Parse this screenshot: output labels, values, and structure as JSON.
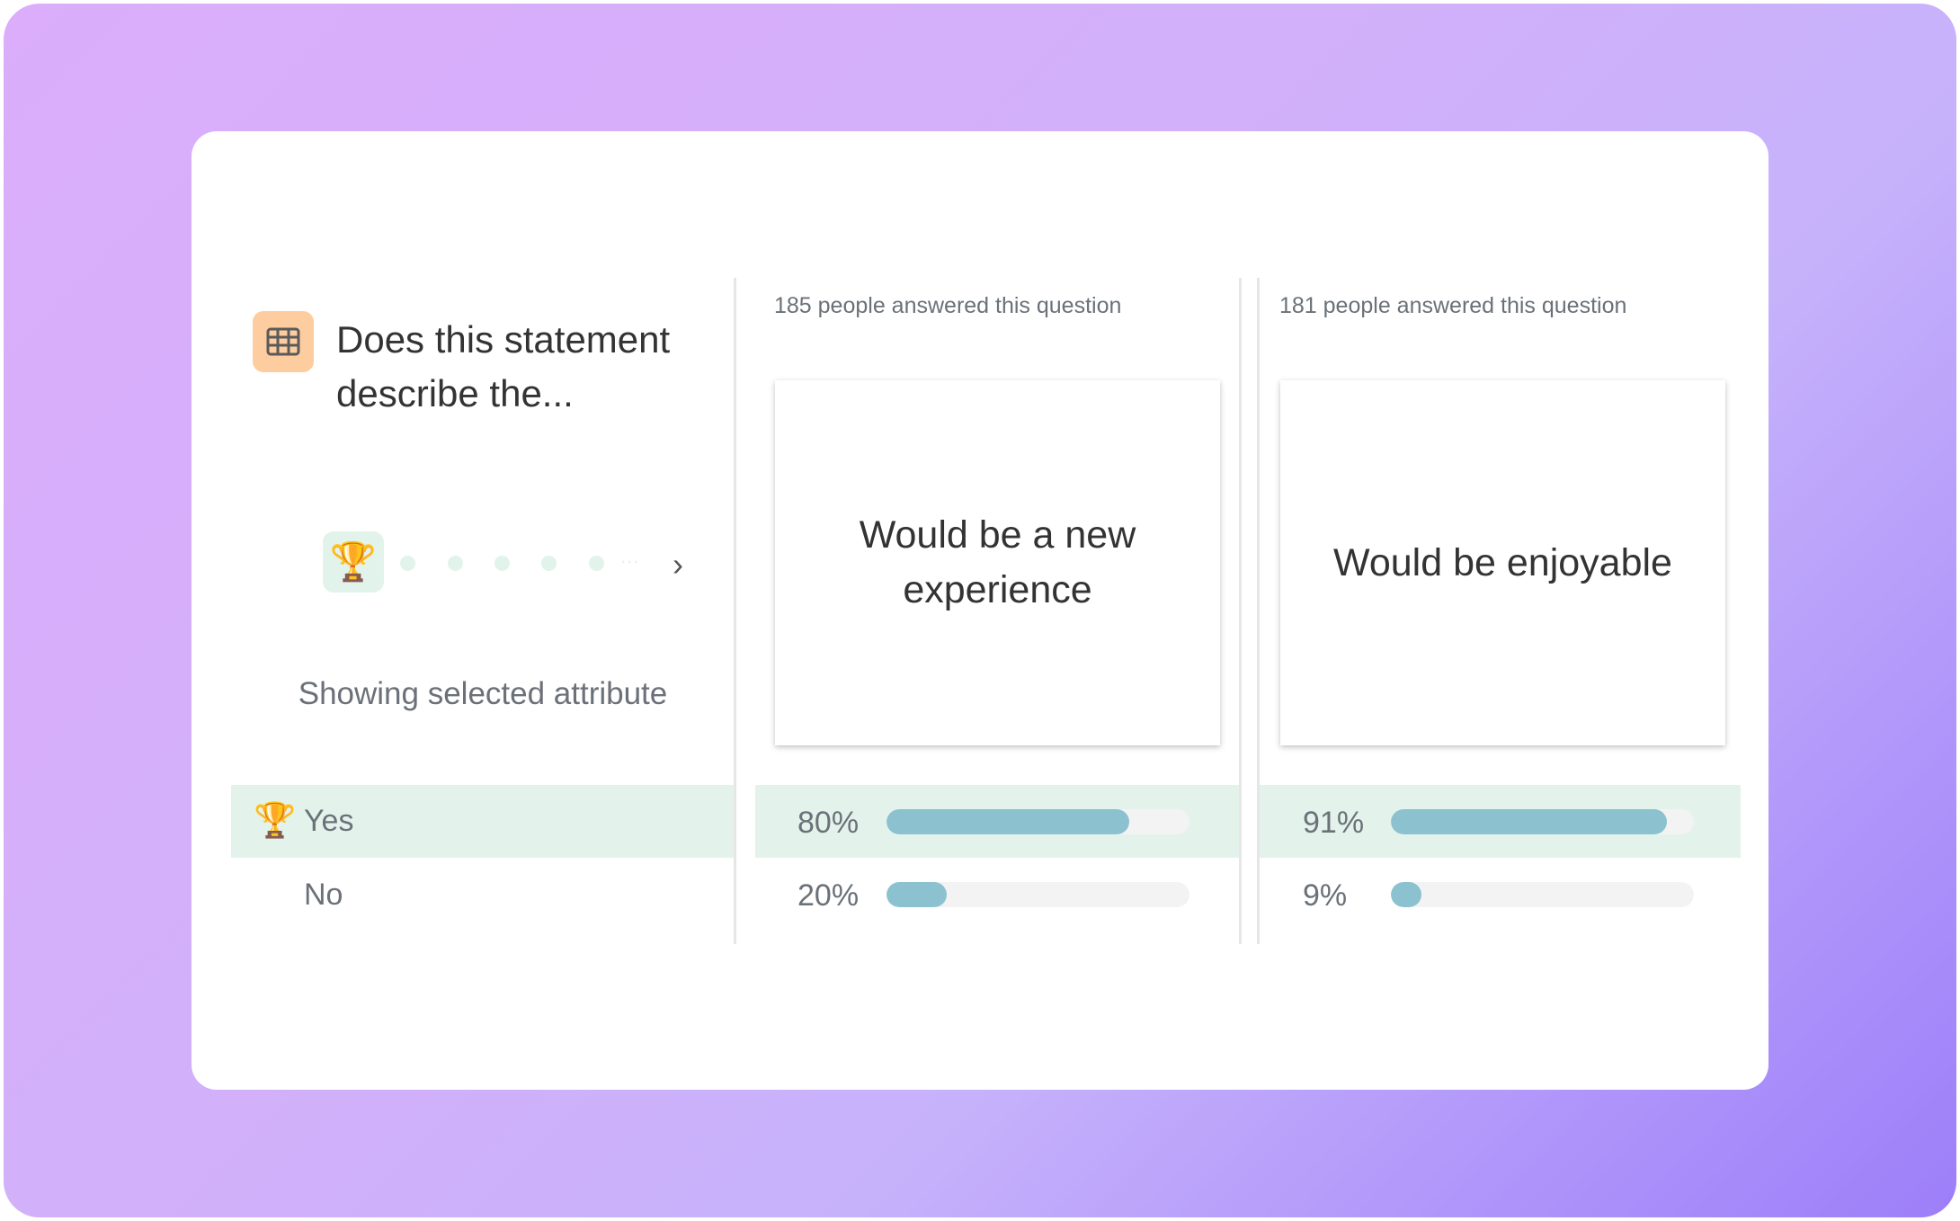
{
  "question": {
    "title": "Does this statement describe the...",
    "icon": "table-grid-icon"
  },
  "attribute_nav": {
    "selected_icon": "trophy-icon",
    "selected_emoji": "🏆",
    "dot_count": 5,
    "ellipsis": "...",
    "next_icon": "chevron-right-icon",
    "next_glyph": "›"
  },
  "showing_label": "Showing selected attribute",
  "answers": [
    {
      "label": "Yes",
      "emoji": "🏆",
      "selected": true
    },
    {
      "label": "No",
      "selected": false
    }
  ],
  "columns": [
    {
      "answered": "185 people answered this question",
      "statement": "Would be a new experience",
      "results": [
        {
          "pct_label": "80%",
          "value": 80
        },
        {
          "pct_label": "20%",
          "value": 20
        }
      ]
    },
    {
      "answered": "181 people answered this question",
      "statement": "Would be enjoyable",
      "results": [
        {
          "pct_label": "91%",
          "value": 91
        },
        {
          "pct_label": "9%",
          "value": 9
        }
      ]
    }
  ],
  "colors": {
    "highlight": "#e3f3ec",
    "bar": "#8cc2d0",
    "icon_bg": "#fdcd9f"
  }
}
